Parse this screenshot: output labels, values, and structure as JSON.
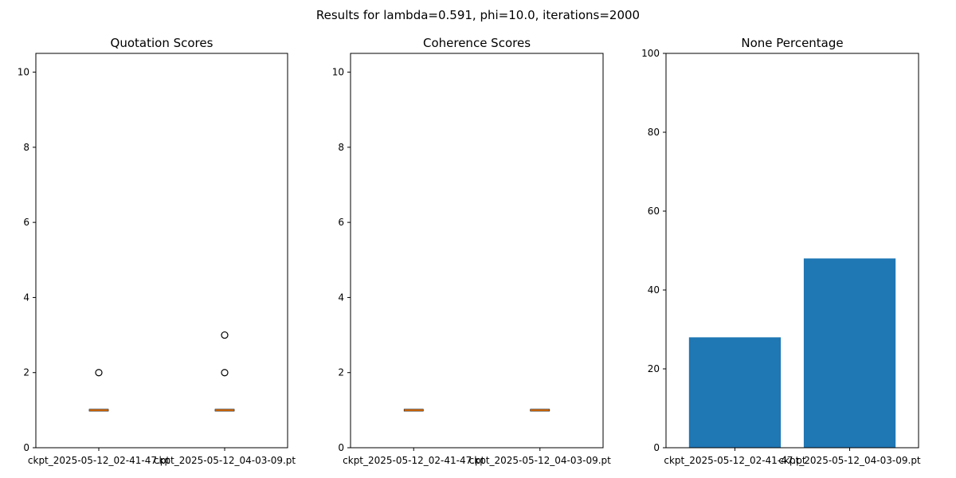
{
  "suptitle": "Results for lambda=0.591, phi=10.0, iterations=2000",
  "colors": {
    "bar": "#1f77b4",
    "median": "#ff7f0e",
    "axis": "#000000"
  },
  "chart_data": [
    {
      "type": "box",
      "title": "Quotation Scores",
      "categories": [
        "ckpt_2025-05-12_02-41-47.pt",
        "ckpt_2025-05-12_04-03-09.pt"
      ],
      "ylim": [
        0,
        10.5
      ],
      "yticks": [
        0,
        2,
        4,
        6,
        8,
        10
      ],
      "boxes": [
        {
          "q1": 1,
          "median": 1,
          "q3": 1,
          "whisker_low": 1,
          "whisker_high": 1,
          "outliers": [
            2
          ]
        },
        {
          "q1": 1,
          "median": 1,
          "q3": 1,
          "whisker_low": 1,
          "whisker_high": 1,
          "outliers": [
            2,
            3
          ]
        }
      ]
    },
    {
      "type": "box",
      "title": "Coherence Scores",
      "categories": [
        "ckpt_2025-05-12_02-41-47.pt",
        "ckpt_2025-05-12_04-03-09.pt"
      ],
      "ylim": [
        0,
        10.5
      ],
      "yticks": [
        0,
        2,
        4,
        6,
        8,
        10
      ],
      "boxes": [
        {
          "q1": 1,
          "median": 1,
          "q3": 1,
          "whisker_low": 1,
          "whisker_high": 1,
          "outliers": []
        },
        {
          "q1": 1,
          "median": 1,
          "q3": 1,
          "whisker_low": 1,
          "whisker_high": 1,
          "outliers": []
        }
      ]
    },
    {
      "type": "bar",
      "title": "None Percentage",
      "categories": [
        "ckpt_2025-05-12_02-41-47.pt",
        "ckpt_2025-05-12_04-03-09.pt"
      ],
      "values": [
        28,
        48
      ],
      "ylim": [
        0,
        100
      ],
      "yticks": [
        0,
        20,
        40,
        60,
        80,
        100
      ]
    }
  ]
}
